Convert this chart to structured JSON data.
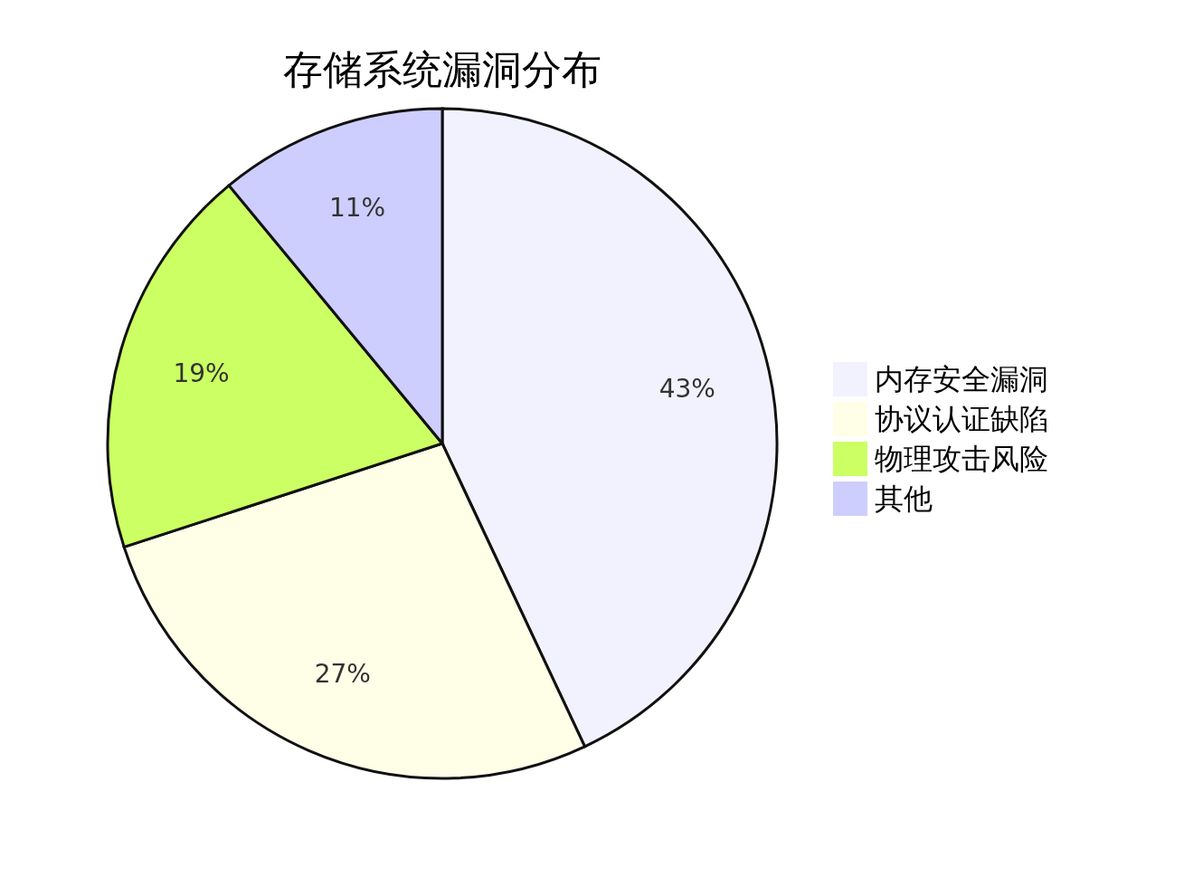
{
  "chart_data": {
    "type": "pie",
    "title": "存储系统漏洞分布",
    "categories": [
      "内存安全漏洞",
      "协议认证缺陷",
      "物理攻击风险",
      "其他"
    ],
    "values": [
      43,
      27,
      19,
      11
    ],
    "value_labels": [
      "43%",
      "27%",
      "19%",
      "11%"
    ],
    "colors": [
      "#f2f2ff",
      "#ffffe8",
      "#cbff63",
      "#cecefe"
    ],
    "legend": "right"
  }
}
